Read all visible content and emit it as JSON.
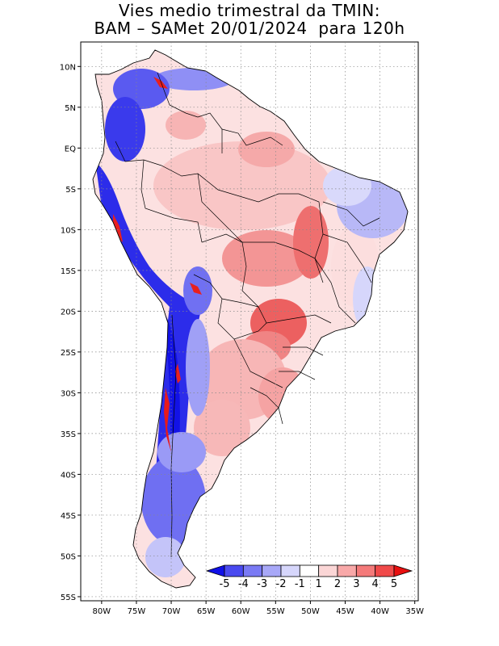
{
  "title": {
    "line1": "Vies medio trimestral da TMIN:",
    "line2": "BAM – SAMet 20/01/2024  para 120h"
  },
  "axes": {
    "y_labels": [
      "10N",
      "5N",
      "EQ",
      "5S",
      "10S",
      "15S",
      "20S",
      "25S",
      "30S",
      "35S",
      "40S",
      "45S",
      "50S",
      "55S"
    ],
    "x_labels": [
      "80W",
      "75W",
      "70W",
      "65W",
      "60W",
      "55W",
      "50W",
      "45W",
      "40W",
      "35W"
    ],
    "lat_range": [
      -55.5,
      13
    ],
    "lon_range": [
      -83,
      -34.5
    ],
    "grid": "dotted"
  },
  "colorbar": {
    "labels": [
      "-5",
      "-4",
      "-3",
      "-2",
      "-1",
      "1",
      "2",
      "3",
      "4",
      "5"
    ],
    "colors": [
      "#1010e8",
      "#4a4af0",
      "#7a7af4",
      "#a8a8f8",
      "#d6d6fb",
      "#ffffff",
      "#fbd6d6",
      "#f8a8a8",
      "#f47a7a",
      "#f04a4a",
      "#e81010"
    ]
  },
  "colors": {
    "strong_cold": "#1a1ae6",
    "cold": "#6f6ff3",
    "light_cold": "#d2d2fa",
    "light_warm": "#fbd0d0",
    "warm": "#f59a9a",
    "strong_warm": "#e82020"
  }
}
